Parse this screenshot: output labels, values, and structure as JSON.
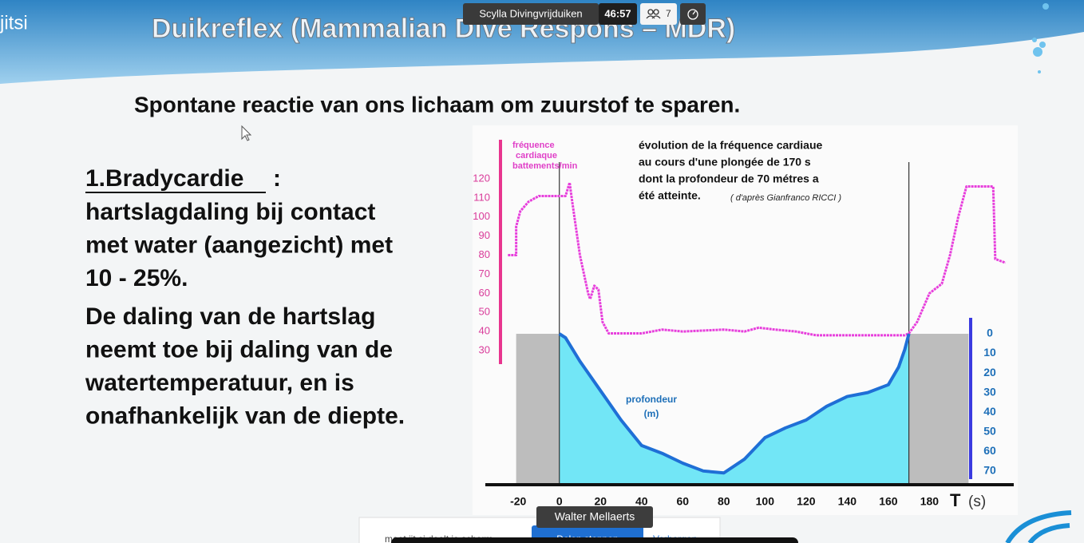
{
  "app": {
    "brand": "jitsi",
    "meeting_name": "Scylla Divingvrijduiken",
    "timer": "46:57",
    "participants": 7,
    "speaker": "Walter Mellaerts",
    "share_notice": {
      "text": "meet.jit.si deelt je scherm.",
      "stop": "Delen stoppen",
      "hide": "Verbergen"
    }
  },
  "slide": {
    "title": "Duikreflex (Mammalian Dive Respons – MDR)",
    "subtitle": "Spontane reactie van ons lichaam om zuurstof te sparen.",
    "heading": "1.Bradycardie",
    "heading_suffix": ":",
    "paragraphs": [
      [
        "hartslagdaling bij contact",
        "met water (aangezicht)  met",
        "10 - 25%."
      ],
      [
        "De daling van de hartslag",
        "neemt toe bij daling van de",
        "watertemperatuur, en is",
        "onafhankelijk van de diepte."
      ]
    ]
  },
  "chart_data": {
    "type": "line",
    "annotation": [
      "évolution de la fréquence cardiaue",
      "au cours d'une plongée de 170 s",
      "dont la profondeur de 70 métres a",
      "été atteinte."
    ],
    "source": "( d'après Gianfranco RICCI )",
    "y_label": [
      "fréquence",
      "cardiaque",
      "battements/min"
    ],
    "y2_label": [
      "profondeur",
      "(m)"
    ],
    "x_label": "T",
    "x_unit": "(s)",
    "xlim": [
      -36,
      221
    ],
    "xticks": [
      -20,
      0,
      20,
      40,
      60,
      80,
      100,
      120,
      140,
      160,
      180
    ],
    "ylim": [
      25,
      125
    ],
    "yticks": [
      30,
      40,
      50,
      60,
      70,
      80,
      90,
      100,
      110,
      120
    ],
    "y2lim": [
      0,
      77
    ],
    "y2ticks": [
      0,
      10,
      20,
      30,
      40,
      50,
      60,
      70
    ],
    "y2_inverted": true,
    "reference_lines_x": [
      0,
      170
    ],
    "surface_intervals": [
      [
        -21,
        0
      ],
      [
        170,
        199
      ]
    ],
    "surface_color": "#bdbdbd",
    "series": [
      {
        "name": "fréquence cardiaque",
        "color": "#e73fdc",
        "x": [
          -25,
          -21,
          -21,
          -19,
          -15,
          -10,
          0,
          3,
          5,
          6,
          8,
          10,
          12,
          14,
          15,
          17,
          19,
          21,
          24,
          40,
          50,
          60,
          80,
          90,
          97,
          105,
          115,
          125,
          140,
          160,
          168,
          170,
          174,
          180,
          186,
          190,
          194,
          198,
          211,
          212,
          217
        ],
        "values": [
          80,
          80,
          95,
          103,
          108,
          111,
          111,
          111,
          118,
          110,
          95,
          80,
          70,
          60,
          57,
          64,
          62,
          45,
          39,
          39,
          41,
          40,
          41,
          40,
          42,
          41,
          40,
          38,
          38,
          38,
          38,
          39,
          45,
          60,
          65,
          80,
          100,
          116,
          116,
          78,
          76
        ]
      },
      {
        "name": "profondeur",
        "color": "#1f6fd6",
        "fill": "#72e6f6",
        "axis": "y2",
        "x": [
          0,
          3,
          10,
          20,
          30,
          40,
          50,
          60,
          70,
          80,
          90,
          100,
          110,
          120,
          130,
          140,
          150,
          160,
          165,
          168,
          170
        ],
        "values": [
          0,
          2,
          14,
          29,
          44,
          57,
          61,
          66,
          70,
          71,
          64,
          53,
          48,
          44,
          37,
          32,
          30,
          26,
          17,
          8,
          0
        ]
      }
    ]
  }
}
